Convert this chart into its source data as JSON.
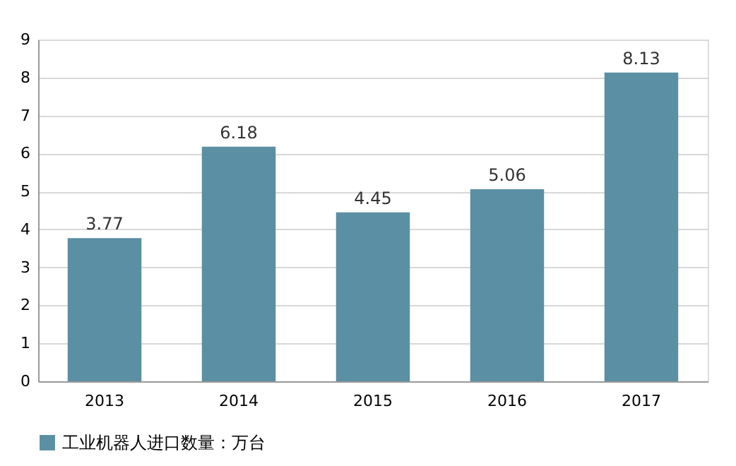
{
  "chart_data": {
    "type": "bar",
    "categories": [
      "2013",
      "2014",
      "2015",
      "2016",
      "2017"
    ],
    "series": [
      {
        "name": "工业机器人进口数量：万台",
        "color": "#5b8fa3",
        "values": [
          3.77,
          6.18,
          4.45,
          5.06,
          8.13
        ]
      }
    ],
    "ylim": [
      0,
      9
    ],
    "yticks": [
      0,
      1,
      2,
      3,
      4,
      5,
      6,
      7,
      8,
      9
    ],
    "grid": "y",
    "legend": "bottom",
    "data_labels": true
  }
}
